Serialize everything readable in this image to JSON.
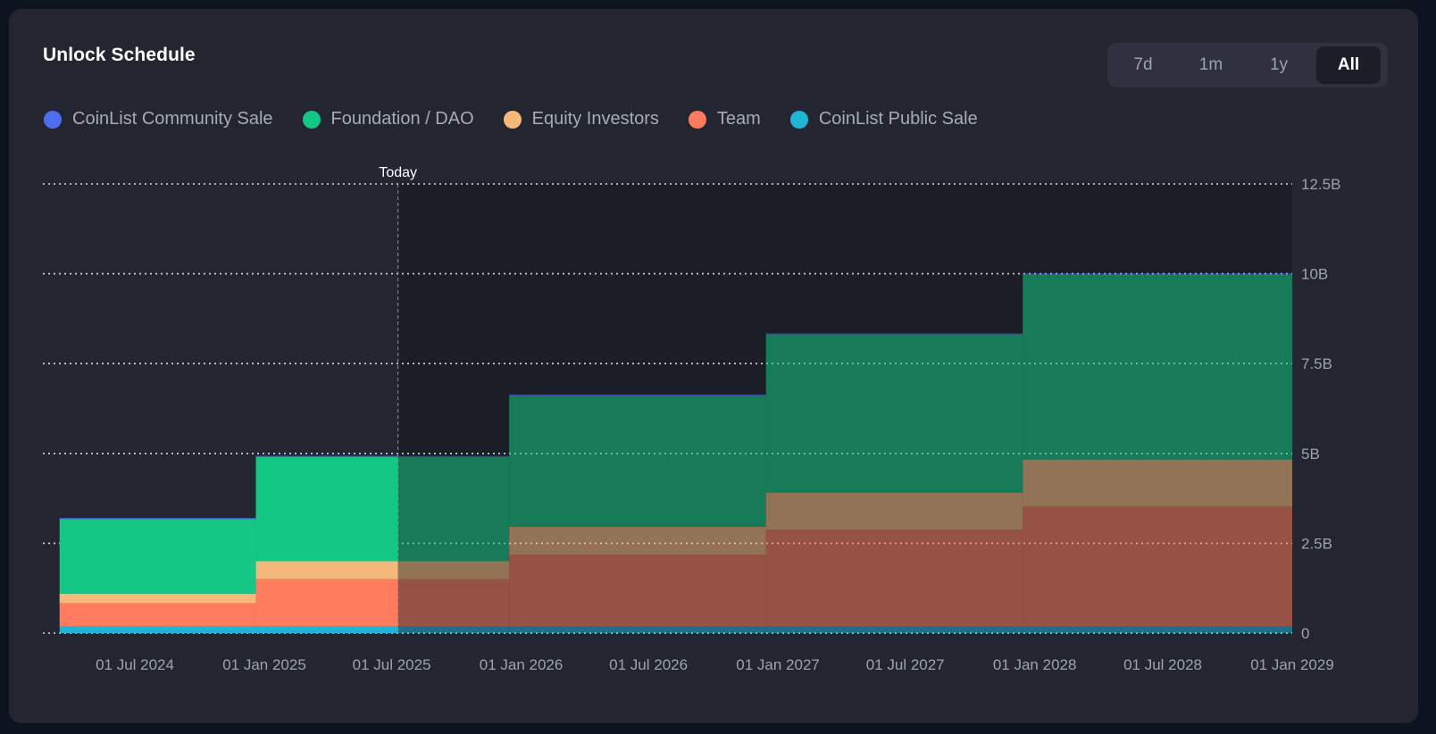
{
  "header": {
    "title": "Unlock Schedule"
  },
  "range_selector": {
    "options": [
      "7d",
      "1m",
      "1y",
      "All"
    ],
    "selected": "All"
  },
  "colors": {
    "card_bg": "#232631",
    "future_bg": "#1b1d27",
    "community_sale": "#4e6ef2",
    "foundation": "#14c784",
    "equity": "#f5b97c",
    "team": "#ff7b5e",
    "public_sale": "#1fb5d6"
  },
  "chart_data": {
    "type": "area",
    "stacked": true,
    "step": true,
    "title": "Unlock Schedule",
    "y_unit": "B",
    "ylim": [
      0,
      12.5
    ],
    "y_ticks": [
      0,
      2.5,
      5,
      7.5,
      10,
      12.5
    ],
    "y_tick_labels": [
      "0",
      "2.5B",
      "5B",
      "7.5B",
      "10B",
      "12.5B"
    ],
    "x_range": [
      "2024-03-10",
      "2029-01-01"
    ],
    "x_tick_labels": [
      "01 Jul 2024",
      "01 Jan 2025",
      "01 Jul 2025",
      "01 Jan 2026",
      "01 Jul 2026",
      "01 Jan 2027",
      "01 Jul 2027",
      "01 Jan 2028",
      "01 Jul 2028",
      "01 Jan 2029"
    ],
    "x_tick_dates": [
      "2024-07-01",
      "2025-01-01",
      "2025-07-01",
      "2026-01-01",
      "2026-07-01",
      "2027-01-01",
      "2027-07-01",
      "2028-01-01",
      "2028-07-01",
      "2029-01-01"
    ],
    "grid": true,
    "legend_position": "top-left",
    "today": {
      "label": "Today",
      "date": "2025-07-10"
    },
    "step_dates": [
      "2024-03-16",
      "2024-12-20",
      "2025-07-10",
      "2025-12-15",
      "2026-12-15",
      "2027-12-15",
      "2029-01-01"
    ],
    "series": [
      {
        "name": "CoinList Public Sale",
        "color_key": "public_sale",
        "values": [
          0.18,
          0.18,
          0.18,
          0.18,
          0.18,
          0.18,
          0.18
        ]
      },
      {
        "name": "Team",
        "color_key": "team",
        "values": [
          0.65,
          1.32,
          1.32,
          2.0,
          2.7,
          3.35,
          3.35
        ]
      },
      {
        "name": "Equity Investors",
        "color_key": "equity",
        "values": [
          0.27,
          0.5,
          0.5,
          0.78,
          1.03,
          1.3,
          1.3
        ]
      },
      {
        "name": "Foundation / DAO",
        "color_key": "foundation",
        "values": [
          2.07,
          2.9,
          2.9,
          3.65,
          4.4,
          5.15,
          5.15
        ]
      },
      {
        "name": "CoinList Community Sale",
        "color_key": "community_sale",
        "values": [
          0.03,
          0.03,
          0.03,
          0.03,
          0.03,
          0.03,
          0.03
        ]
      }
    ],
    "legend_order": [
      "CoinList Community Sale",
      "Foundation / DAO",
      "Equity Investors",
      "Team",
      "CoinList Public Sale"
    ]
  }
}
